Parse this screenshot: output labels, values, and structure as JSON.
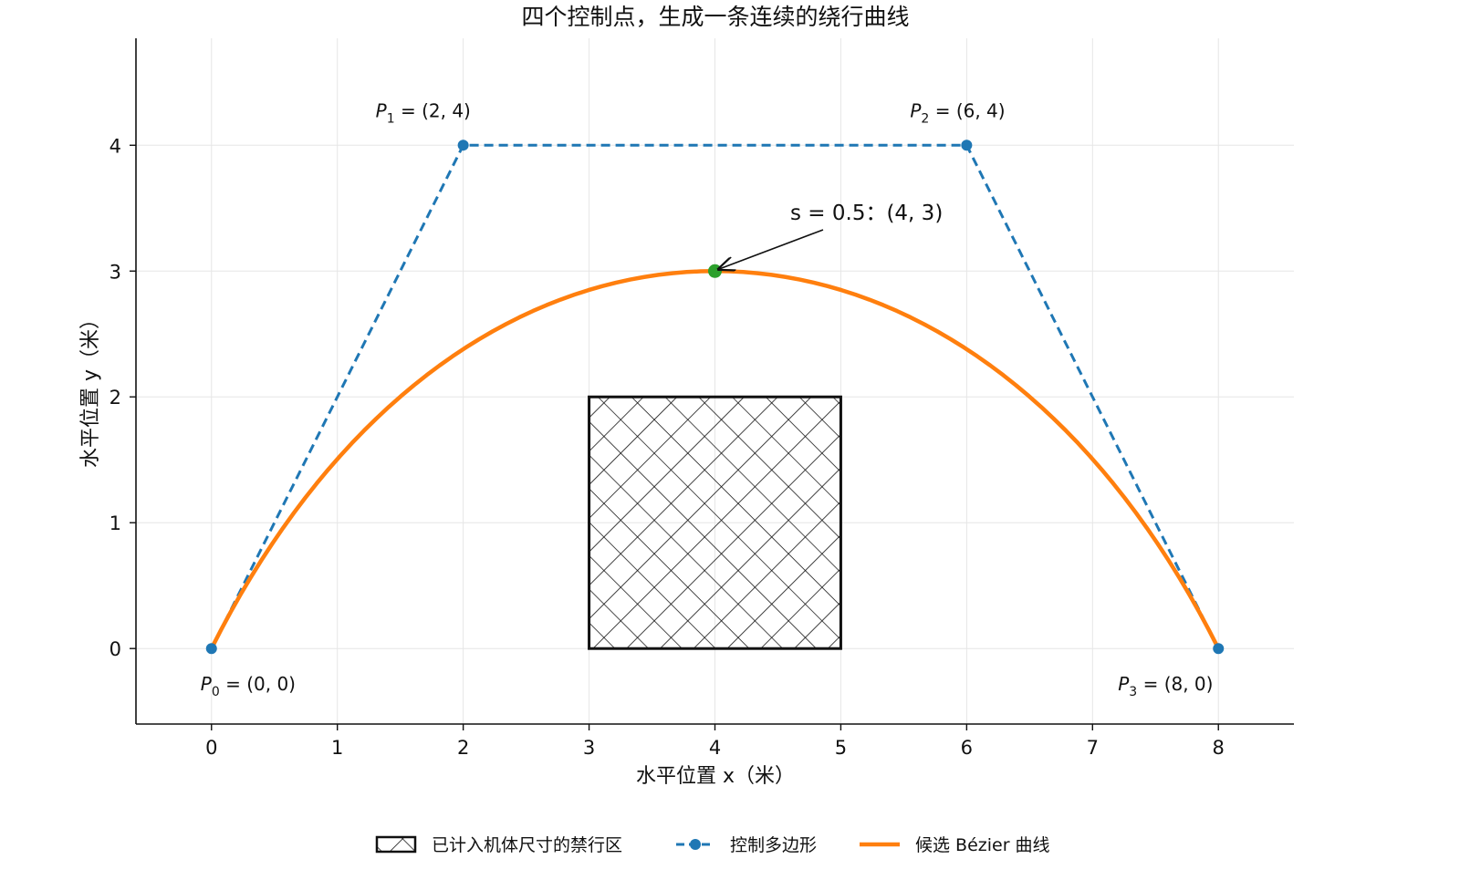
{
  "chart_data": {
    "type": "line",
    "title": "四个控制点，生成一条连续的绕行曲线",
    "xlabel": "水平位置 x（米）",
    "ylabel": "水平位置 y（米）",
    "xlim": [
      -0.6,
      8.6
    ],
    "ylim": [
      -0.6,
      4.85
    ],
    "xticks": [
      0,
      1,
      2,
      3,
      4,
      5,
      6,
      7,
      8
    ],
    "yticks": [
      0,
      1,
      2,
      3,
      4
    ],
    "grid": true,
    "legend_position": "bottom",
    "control_points": [
      {
        "name": "P0",
        "label": "(0, 0)",
        "x": 0,
        "y": 0
      },
      {
        "name": "P1",
        "label": "(2, 4)",
        "x": 2,
        "y": 4
      },
      {
        "name": "P2",
        "label": "(6, 4)",
        "x": 6,
        "y": 4
      },
      {
        "name": "P3",
        "label": "(8, 0)",
        "x": 8,
        "y": 0
      }
    ],
    "series": [
      {
        "name": "控制多边形",
        "type": "line-dashed-markers",
        "color": "#1f77b4",
        "x": [
          0,
          2,
          6,
          8
        ],
        "y": [
          0,
          4,
          4,
          0
        ]
      },
      {
        "name": "候选 Bézier 曲线",
        "type": "cubic-bezier",
        "color": "#ff7f0e",
        "samples": 80
      }
    ],
    "obstacle": {
      "name": "已计入机体尺寸的禁行区",
      "x": [
        3,
        5
      ],
      "y": [
        0,
        2
      ],
      "hatch": "crosshatch",
      "color": "#111111"
    },
    "highlight_point": {
      "x": 4,
      "y": 3,
      "color": "#2ca02c"
    },
    "annotation": {
      "text": "s = 0.5：(4, 3)",
      "target_x": 4,
      "target_y": 3
    }
  }
}
